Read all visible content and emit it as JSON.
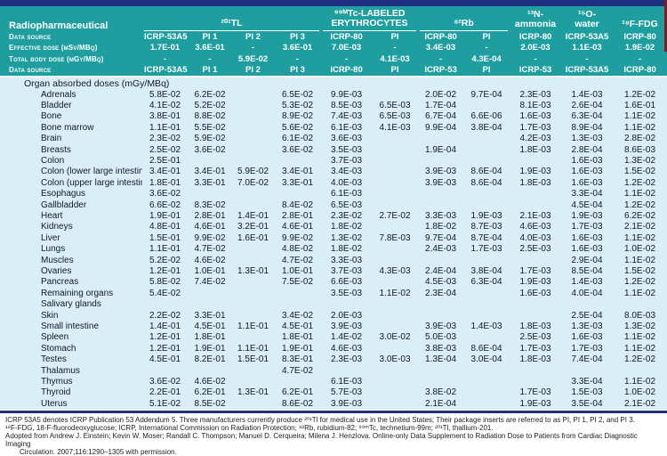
{
  "colors": {
    "header_teal": "#1f9e9f",
    "top_bar_navy": "#1d2f7e",
    "body_light_blue": "#daeef8",
    "header_text": "#ffffff",
    "body_text": "#10182b",
    "edge_marker_red": "#7e1d1d"
  },
  "table": {
    "row_head_title": "Radiopharmaceutical",
    "groups": [
      {
        "label": "²⁰¹TL",
        "span": 4,
        "underline": true
      },
      {
        "label": "⁹⁹ᴹTc-LABELED ERYTHROCYTES",
        "span": 2,
        "underline": true
      },
      {
        "label": "⁸²Rb",
        "span": 2,
        "underline": true
      },
      {
        "label": "¹³N-ammonia",
        "span": 1,
        "underline": false
      },
      {
        "label": "¹⁵O-water",
        "span": 1,
        "underline": false
      },
      {
        "label": "¹⁸F-FDG",
        "span": 1,
        "underline": false
      }
    ],
    "header_rows": [
      {
        "label": "Data source",
        "values": [
          "ICRP-53A5",
          "PI 1",
          "PI 2",
          "PI 3",
          "ICRP-80",
          "PI",
          "ICRP-80",
          "PI",
          "ICRP-80",
          "ICRP-53A5",
          "ICRP-80"
        ]
      },
      {
        "label": "Effective dose (mSv/MBq)",
        "values": [
          "1.7E-01",
          "3.6E-01",
          "-",
          "3.6E-01",
          "7.0E-03",
          "-",
          "3.4E-03",
          "-",
          "2.0E-03",
          "1.1E-03",
          "1.9E-02"
        ]
      },
      {
        "label": "Total body dose (mGy/MBq)",
        "values": [
          "-",
          "-",
          "5.9E-02",
          "-",
          "-",
          "4.1E-03",
          "-",
          "4.3E-04",
          "-",
          "-",
          "-"
        ]
      },
      {
        "label": "Data source",
        "values": [
          "ICRP-53A5",
          "PI 1",
          "PI 2",
          "PI 3",
          "ICRP-80",
          "PI",
          "ICRP-53",
          "PI",
          "ICRP-53",
          "ICRP-53A5",
          "ICRP-80"
        ]
      }
    ],
    "section_header": "Organ absorbed doses (mGy/MBq)",
    "rows": [
      {
        "organ": "Adrenals",
        "values": [
          "5.8E-02",
          "6.2E-02",
          "",
          "6.5E-02",
          "9.9E-03",
          "",
          "2.0E-02",
          "9.7E-04",
          "2.3E-03",
          "1.4E-03",
          "1.2E-02"
        ]
      },
      {
        "organ": "Bladder",
        "values": [
          "4.1E-02",
          "5.2E-02",
          "",
          "5.3E-02",
          "8.5E-03",
          "6.5E-03",
          "1.7E-04",
          "",
          "8.1E-03",
          "2.6E-04",
          "1.6E-01"
        ]
      },
      {
        "organ": "Bone",
        "values": [
          "3.8E-01",
          "8.8E-02",
          "",
          "8.9E-02",
          "7.4E-03",
          "6.5E-03",
          "6.7E-04",
          "6.6E-06",
          "1.6E-03",
          "6.3E-04",
          "1.1E-02"
        ]
      },
      {
        "organ": "Bone marrow",
        "values": [
          "1.1E-01",
          "5.5E-02",
          "",
          "5.6E-02",
          "6.1E-03",
          "4.1E-03",
          "9.9E-04",
          "3.8E-04",
          "1.7E-03",
          "8.9E-04",
          "1.1E-02"
        ]
      },
      {
        "organ": "Brain",
        "values": [
          "2.3E-02",
          "5.9E-02",
          "",
          "6.1E-02",
          "3.6E-03",
          "",
          "",
          "",
          "4.2E-03",
          "1.3E-03",
          "2.8E-02"
        ]
      },
      {
        "organ": "Breasts",
        "values": [
          "2.5E-02",
          "3.6E-02",
          "",
          "3.6E-02",
          "3.5E-03",
          "",
          "1.9E-04",
          "",
          "1.8E-03",
          "2.8E-04",
          "8.6E-03"
        ]
      },
      {
        "organ": "Colon",
        "values": [
          "2.5E-01",
          "",
          "",
          "",
          "3.7E-03",
          "",
          "",
          "",
          "",
          "1.6E-03",
          "1.3E-02"
        ]
      },
      {
        "organ": "Colon (lower large intestine)",
        "values": [
          "3.4E-01",
          "3.4E-01",
          "5.9E-02",
          "3.4E-01",
          "3.4E-03",
          "",
          "3.9E-03",
          "8.6E-04",
          "1.9E-03",
          "1.6E-03",
          "1.5E-02"
        ]
      },
      {
        "organ": "Colon (upper large intestine)",
        "values": [
          "1.8E-01",
          "3.3E-01",
          "7.0E-02",
          "3.3E-01",
          "4.0E-03",
          "",
          "3.9E-03",
          "8.6E-04",
          "1.8E-03",
          "1.6E-03",
          "1.2E-02"
        ]
      },
      {
        "organ": "Esophagus",
        "values": [
          "3.6E-02",
          "",
          "",
          "",
          "6.1E-03",
          "",
          "",
          "",
          "",
          "3.3E-04",
          "1.1E-02"
        ]
      },
      {
        "organ": "Gallbladder",
        "values": [
          "6.6E-02",
          "8.3E-02",
          "",
          "8.4E-02",
          "6.5E-03",
          "",
          "",
          "",
          "",
          "4.5E-04",
          "1.2E-02"
        ]
      },
      {
        "organ": "Heart",
        "values": [
          "1.9E-01",
          "2.8E-01",
          "1.4E-01",
          "2.8E-01",
          "2.3E-02",
          "2.7E-02",
          "3.3E-03",
          "1.9E-03",
          "2.1E-03",
          "1.9E-03",
          "6.2E-02"
        ]
      },
      {
        "organ": "Kidneys",
        "values": [
          "4.8E-01",
          "4.6E-01",
          "3.2E-01",
          "4.6E-01",
          "1.8E-02",
          "",
          "1.8E-02",
          "8.7E-03",
          "4.6E-03",
          "1.7E-03",
          "2.1E-02"
        ]
      },
      {
        "organ": "Liver",
        "values": [
          "1.5E-01",
          "9.9E-02",
          "1.6E-01",
          "9.9E-02",
          "1.3E-02",
          "7.8E-03",
          "9.7E-04",
          "8.7E-04",
          "4.0E-03",
          "1.6E-03",
          "1.1E-02"
        ]
      },
      {
        "organ": "Lungs",
        "values": [
          "1.1E-01",
          "4.7E-02",
          "",
          "4.8E-02",
          "1.8E-02",
          "",
          "2.4E-03",
          "1.7E-03",
          "2.5E-03",
          "1.6E-03",
          "1.0E-02"
        ]
      },
      {
        "organ": "Muscles",
        "values": [
          "5.2E-02",
          "4.6E-02",
          "",
          "4.7E-02",
          "3.3E-03",
          "",
          "",
          "",
          "",
          "2.9E-04",
          "1.1E-02"
        ]
      },
      {
        "organ": "Ovaries",
        "values": [
          "1.2E-01",
          "1.0E-01",
          "1.3E-01",
          "1.0E-01",
          "3.7E-03",
          "4.3E-03",
          "2.4E-04",
          "3.8E-04",
          "1.7E-03",
          "8.5E-04",
          "1.5E-02"
        ]
      },
      {
        "organ": "Pancreas",
        "values": [
          "5.8E-02",
          "7.4E-02",
          "",
          "7.5E-02",
          "6.6E-03",
          "",
          "4.5E-03",
          "6.3E-04",
          "1.9E-03",
          "1.4E-03",
          "1.2E-02"
        ]
      },
      {
        "organ": "Remaining organs",
        "values": [
          "5.4E-02",
          "",
          "",
          "",
          "3.5E-03",
          "1.1E-02",
          "2.3E-04",
          "",
          "1.6E-03",
          "4.0E-04",
          "1.1E-02"
        ]
      },
      {
        "organ": "Salivary glands",
        "values": [
          "",
          "",
          "",
          "",
          "",
          "",
          "",
          "",
          "",
          "",
          ""
        ]
      },
      {
        "organ": "Skin",
        "values": [
          "2.2E-02",
          "3.3E-01",
          "",
          "3.4E-02",
          "2.0E-03",
          "",
          "",
          "",
          "",
          "2.5E-04",
          "8.0E-03"
        ]
      },
      {
        "organ": "Small intestine",
        "values": [
          "1.4E-01",
          "4.5E-01",
          "1.1E-01",
          "4.5E-01",
          "3.9E-03",
          "",
          "3.9E-03",
          "1.4E-03",
          "1.8E-03",
          "1.3E-03",
          "1.3E-02"
        ]
      },
      {
        "organ": "Spleen",
        "values": [
          "1.2E-01",
          "1.8E-01",
          "",
          "1.8E-01",
          "1.4E-02",
          "3.0E-02",
          "5.0E-03",
          "",
          "2.5E-03",
          "1.6E-03",
          "1.1E-02"
        ]
      },
      {
        "organ": "Stomach",
        "values": [
          "1.2E-01",
          "1.9E-01",
          "1.1E-01",
          "1.9E-01",
          "4.6E-03",
          "",
          "3.8E-03",
          "8.6E-04",
          "1.7E-03",
          "1.7E-03",
          "1.1E-02"
        ]
      },
      {
        "organ": "Testes",
        "values": [
          "4.5E-01",
          "8.2E-01",
          "1.5E-01",
          "8.3E-01",
          "2.3E-03",
          "3.0E-03",
          "1.3E-04",
          "3.0E-04",
          "1.8E-03",
          "7.4E-04",
          "1.2E-02"
        ]
      },
      {
        "organ": "Thalamus",
        "values": [
          "",
          "",
          "",
          "4.7E-02",
          "",
          "",
          "",
          "",
          "",
          "",
          ""
        ]
      },
      {
        "organ": "Thymus",
        "values": [
          "3.6E-02",
          "4.6E-02",
          "",
          "",
          "6.1E-03",
          "",
          "",
          "",
          "",
          "3.3E-04",
          "1.1E-02"
        ]
      },
      {
        "organ": "Thyroid",
        "values": [
          "2.2E-01",
          "6.2E-01",
          "1.3E-01",
          "6.2E-01",
          "5.7E-03",
          "",
          "3.8E-02",
          "",
          "1.7E-03",
          "1.5E-03",
          "1.0E-02"
        ]
      },
      {
        "organ": "Uterus",
        "values": [
          "5.1E-02",
          "8.5E-02",
          "",
          "8.6E-02",
          "3.9E-03",
          "",
          "2.1E-04",
          "",
          "1.9E-03",
          "3.5E-04",
          "2.1E-02"
        ]
      }
    ]
  },
  "footnotes": [
    "ICRP 53A5 denotes ICRP Publication 53 Addendum 5. Three manufacturers currently produce ²⁰¹Tl for medical use in the United States; Their package inserts are referred to as PI, PI 1, PI 2, and PI 3.",
    "¹⁸F-FDG, 18-F-fluorodeoxyglucose; ICRP, International Commission on Radiation Protection; ⁸²Rb, rubidium-82; ⁹⁹ᵐTc, technetium-99m; ²⁰¹Tl, thallium-201.",
    "Adopted from Andrew J. Einstein; Kevin W. Moser; Randall C. Thompson; Manuel D. Cerqueira; Milena J. Henzlova. Online-only Data Supplement to Radiation Dose to Patients from Cardiac Diagnostic Imaging",
    "Circulation. 2007;116:1290–1305 with permission."
  ]
}
